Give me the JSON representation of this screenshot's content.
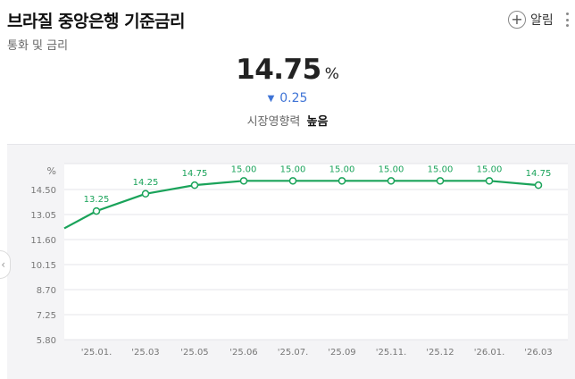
{
  "header": {
    "title": "브라질 중앙은행 기준금리",
    "subtitle": "통화 및 금리",
    "alarm_icon": "plus-icon",
    "alarm_label": "알림",
    "more_icon": "more-vertical-icon"
  },
  "summary": {
    "rate": "14.75",
    "unit": "%",
    "change_arrow": "▼",
    "change": "0.25",
    "change_color": "#3f74d6",
    "impact_label": "시장영향력",
    "impact_value": "높음"
  },
  "side_nav": {
    "icon": "chevron-left-icon",
    "glyph": "‹"
  },
  "chart_data": {
    "type": "line",
    "ylabel": "%",
    "ylim": [
      5.8,
      16.0
    ],
    "y_ticks": [
      "14.50",
      "13.05",
      "11.60",
      "10.15",
      "8.70",
      "7.25",
      "5.80"
    ],
    "y_tick_values": [
      14.5,
      13.05,
      11.6,
      10.15,
      8.7,
      7.25,
      5.8
    ],
    "categories": [
      "'25.01.",
      "'25.03",
      "'25.05",
      "'25.06",
      "'25.07.",
      "'25.09",
      "'25.11.",
      "'25.12",
      "'26.01.",
      "'26.03"
    ],
    "values": [
      13.25,
      14.25,
      14.75,
      15.0,
      15.0,
      15.0,
      15.0,
      15.0,
      15.0,
      14.75
    ],
    "data_labels": [
      "13.25",
      "14.25",
      "14.75",
      "15.00",
      "15.00",
      "15.00",
      "15.00",
      "15.00",
      "15.00",
      "14.75"
    ],
    "start_value": 12.25,
    "line_color": "#1aa35a",
    "grid": true
  }
}
